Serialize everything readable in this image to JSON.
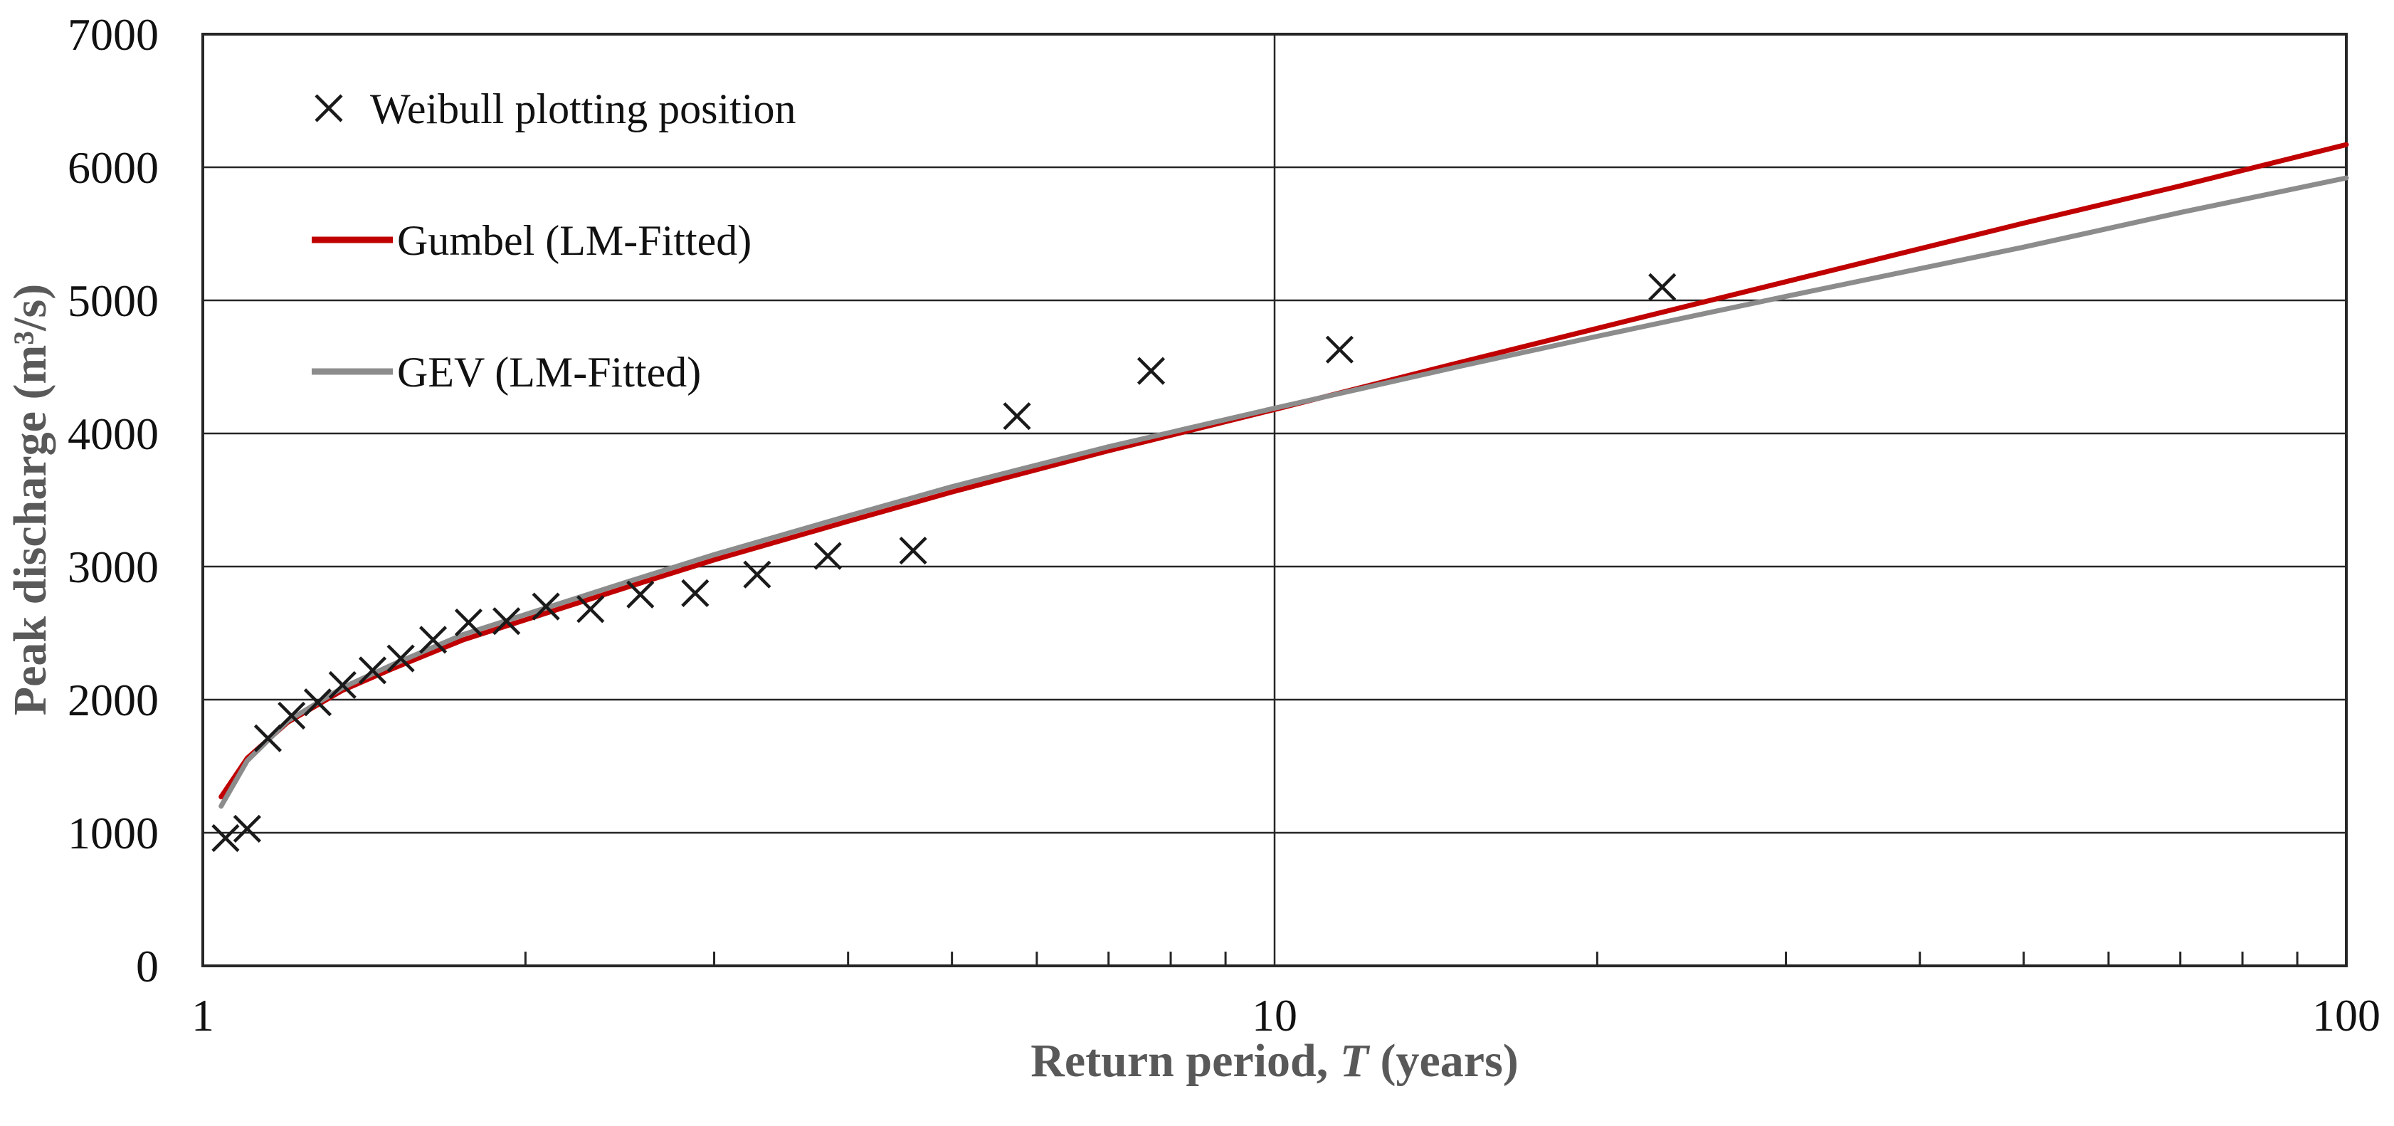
{
  "figure": {
    "background": "#ffffff",
    "frame_color": "#262626",
    "gridline_color": "#262626",
    "marker_color": "#1a1a1a",
    "axis_title_color": "#595959",
    "gumbel_color": "#c00000",
    "gev_color": "#8c8c8c"
  },
  "axes": {
    "x_title": {
      "prefix": "Return period, ",
      "variable": "T",
      "suffix": " (years)"
    },
    "y_title": "Peak discharge (m³/s)",
    "x_scale": "log",
    "x_min": 1,
    "x_max": 100,
    "y_min": 0,
    "y_max": 7000,
    "x_major_ticks": [
      1,
      10,
      100
    ],
    "x_major_tick_labels": [
      "1",
      "10",
      "100"
    ],
    "x_minor_ticks": [
      2,
      3,
      4,
      5,
      6,
      7,
      8,
      9,
      20,
      30,
      40,
      50,
      60,
      70,
      80,
      90
    ],
    "x_gridlines": [
      10
    ],
    "y_ticks": [
      0,
      1000,
      2000,
      3000,
      4000,
      5000,
      6000,
      7000
    ],
    "y_tick_labels": [
      "0",
      "1000",
      "2000",
      "3000",
      "4000",
      "5000",
      "6000",
      "7000"
    ],
    "y_gridlines": [
      1000,
      2000,
      3000,
      4000,
      5000,
      6000
    ]
  },
  "legend": {
    "items": [
      {
        "label": "Weibull plotting position",
        "marker": "x-cross",
        "color": "#1a1a1a"
      },
      {
        "label": "Gumbel (LM-Fitted)",
        "marker": "line",
        "color": "#c00000"
      },
      {
        "label": "GEV (LM-Fitted)",
        "marker": "line",
        "color": "#8c8c8c"
      }
    ]
  },
  "chart_data": {
    "type": "scatter",
    "title": "",
    "xlabel": "Return period, T (years)",
    "ylabel": "Peak discharge (m³/s)",
    "x_axis": {
      "scale": "log",
      "range": [
        1,
        100
      ],
      "gridlines": [
        10
      ]
    },
    "y_axis": {
      "range": [
        0,
        7000
      ],
      "gridline_step": 1000
    },
    "legend_position": "upper-left-inside",
    "series": [
      {
        "name": "Weibull plotting position",
        "type": "scatter",
        "marker": "x",
        "color": "#1a1a1a",
        "points": [
          [
            1.05,
            960
          ],
          [
            1.1,
            1030
          ],
          [
            1.15,
            1710
          ],
          [
            1.21,
            1880
          ],
          [
            1.28,
            1980
          ],
          [
            1.35,
            2110
          ],
          [
            1.44,
            2220
          ],
          [
            1.53,
            2310
          ],
          [
            1.64,
            2450
          ],
          [
            1.77,
            2580
          ],
          [
            1.92,
            2590
          ],
          [
            2.09,
            2700
          ],
          [
            2.3,
            2680
          ],
          [
            2.56,
            2790
          ],
          [
            2.88,
            2800
          ],
          [
            3.29,
            2940
          ],
          [
            3.83,
            3080
          ],
          [
            4.6,
            3120
          ],
          [
            5.75,
            4130
          ],
          [
            7.67,
            4470
          ],
          [
            11.5,
            4630
          ],
          [
            23.0,
            5100
          ]
        ]
      },
      {
        "name": "Gumbel (LM-Fitted)",
        "type": "line",
        "color": "#c00000",
        "points": [
          [
            1.04,
            1270
          ],
          [
            1.1,
            1560
          ],
          [
            1.2,
            1830
          ],
          [
            1.35,
            2070
          ],
          [
            1.5,
            2230
          ],
          [
            1.75,
            2450
          ],
          [
            2.0,
            2600
          ],
          [
            2.5,
            2850
          ],
          [
            3.0,
            3050
          ],
          [
            4.0,
            3340
          ],
          [
            5.0,
            3560
          ],
          [
            7.0,
            3870
          ],
          [
            10.0,
            4180
          ],
          [
            15.0,
            4540
          ],
          [
            20.0,
            4790
          ],
          [
            30.0,
            5140
          ],
          [
            50.0,
            5580
          ],
          [
            70.0,
            5860
          ],
          [
            100.0,
            6170
          ]
        ]
      },
      {
        "name": "GEV (LM-Fitted)",
        "type": "line",
        "color": "#8c8c8c",
        "points": [
          [
            1.04,
            1200
          ],
          [
            1.1,
            1540
          ],
          [
            1.2,
            1840
          ],
          [
            1.35,
            2090
          ],
          [
            1.5,
            2260
          ],
          [
            1.75,
            2490
          ],
          [
            2.0,
            2640
          ],
          [
            2.5,
            2890
          ],
          [
            3.0,
            3090
          ],
          [
            4.0,
            3380
          ],
          [
            5.0,
            3600
          ],
          [
            7.0,
            3900
          ],
          [
            10.0,
            4190
          ],
          [
            15.0,
            4510
          ],
          [
            20.0,
            4730
          ],
          [
            30.0,
            5030
          ],
          [
            50.0,
            5400
          ],
          [
            70.0,
            5660
          ],
          [
            100.0,
            5920
          ]
        ]
      }
    ]
  }
}
